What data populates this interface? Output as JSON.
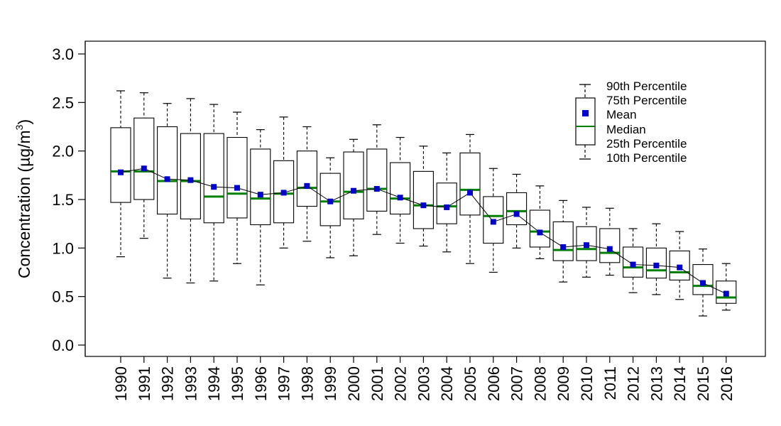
{
  "chart_data": {
    "type": "boxplot",
    "title": "",
    "xlabel": "",
    "ylabel": "Concentration (µg/m3)",
    "ylabel_parts": {
      "prefix": "Concentration (",
      "mu": "µ",
      "unit": "g/m",
      "sup": "3",
      "suffix": ")"
    },
    "ylim": [
      0,
      3
    ],
    "yticks": [
      "0.0",
      "0.5",
      "1.0",
      "1.5",
      "2.0",
      "2.5",
      "3.0"
    ],
    "ytick_values": [
      0,
      0.5,
      1.0,
      1.5,
      2.0,
      2.5,
      3.0
    ],
    "categories": [
      "1990",
      "1991",
      "1992",
      "1993",
      "1994",
      "1995",
      "1996",
      "1997",
      "1998",
      "1999",
      "2000",
      "2001",
      "2002",
      "2003",
      "2004",
      "2005",
      "2006",
      "2007",
      "2008",
      "2009",
      "2010",
      "2011",
      "2012",
      "2013",
      "2014",
      "2015",
      "2016"
    ],
    "series": [
      {
        "name": "90th Percentile",
        "values": [
          2.62,
          2.6,
          2.49,
          2.54,
          2.48,
          2.4,
          2.22,
          2.35,
          2.25,
          1.93,
          2.12,
          2.27,
          2.14,
          2.05,
          1.98,
          2.17,
          1.82,
          1.76,
          1.64,
          1.49,
          1.42,
          1.41,
          1.2,
          1.25,
          1.17,
          0.99,
          0.84
        ]
      },
      {
        "name": "75th Percentile",
        "values": [
          2.24,
          2.34,
          2.25,
          2.18,
          2.18,
          2.14,
          2.02,
          1.9,
          2.0,
          1.77,
          1.99,
          2.02,
          1.88,
          1.79,
          1.67,
          1.98,
          1.53,
          1.57,
          1.39,
          1.27,
          1.22,
          1.2,
          1.01,
          1.0,
          0.97,
          0.83,
          0.66
        ]
      },
      {
        "name": "Mean",
        "values": [
          1.78,
          1.82,
          1.71,
          1.7,
          1.63,
          1.62,
          1.55,
          1.57,
          1.64,
          1.48,
          1.59,
          1.61,
          1.52,
          1.44,
          1.42,
          1.57,
          1.27,
          1.35,
          1.16,
          1.01,
          1.03,
          0.99,
          0.83,
          0.82,
          0.8,
          0.64,
          0.53
        ]
      },
      {
        "name": "Median",
        "values": [
          1.79,
          1.79,
          1.69,
          1.69,
          1.53,
          1.56,
          1.51,
          1.56,
          1.62,
          1.48,
          1.58,
          1.61,
          1.51,
          1.44,
          1.43,
          1.6,
          1.33,
          1.38,
          1.17,
          0.98,
          0.99,
          0.95,
          0.8,
          0.77,
          0.75,
          0.61,
          0.49
        ]
      },
      {
        "name": "25th Percentile",
        "values": [
          1.47,
          1.5,
          1.35,
          1.3,
          1.26,
          1.31,
          1.24,
          1.26,
          1.43,
          1.23,
          1.3,
          1.38,
          1.35,
          1.2,
          1.25,
          1.34,
          1.05,
          1.24,
          1.01,
          0.87,
          0.87,
          0.85,
          0.7,
          0.69,
          0.67,
          0.52,
          0.43
        ]
      },
      {
        "name": "10th Percentile",
        "values": [
          0.91,
          1.1,
          0.69,
          0.64,
          0.66,
          0.84,
          0.62,
          1.0,
          1.07,
          0.9,
          0.92,
          1.14,
          1.05,
          1.02,
          0.96,
          0.84,
          0.75,
          1.0,
          0.89,
          0.65,
          0.7,
          0.72,
          0.54,
          0.52,
          0.47,
          0.3,
          0.36
        ]
      }
    ],
    "legend": {
      "position": "top-right",
      "entries": [
        "90th Percentile",
        "75th Percentile",
        "Mean",
        "Median",
        "25th Percentile",
        "10th Percentile"
      ]
    },
    "grid": false,
    "colors": {
      "median": "#008000",
      "mean": "#0000cc",
      "axis": "#000000",
      "box": "#000000",
      "connector": "#000000"
    }
  }
}
